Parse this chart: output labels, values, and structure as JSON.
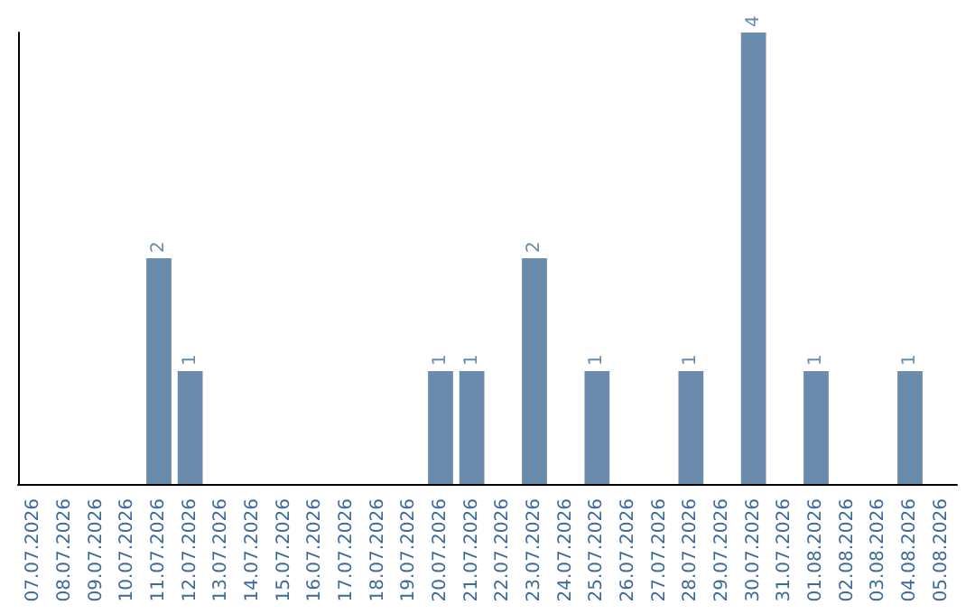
{
  "chart_data": {
    "type": "bar",
    "categories": [
      "07.07.2026",
      "08.07.2026",
      "09.07.2026",
      "10.07.2026",
      "11.07.2026",
      "12.07.2026",
      "13.07.2026",
      "14.07.2026",
      "15.07.2026",
      "16.07.2026",
      "17.07.2026",
      "18.07.2026",
      "19.07.2026",
      "20.07.2026",
      "21.07.2026",
      "22.07.2026",
      "23.07.2026",
      "24.07.2026",
      "25.07.2026",
      "26.07.2026",
      "27.07.2026",
      "28.07.2026",
      "29.07.2026",
      "30.07.2026",
      "31.07.2026",
      "01.08.2026",
      "02.08.2026",
      "03.08.2026",
      "04.08.2026",
      "05.08.2026"
    ],
    "values": [
      0,
      0,
      0,
      0,
      2,
      1,
      0,
      0,
      0,
      0,
      0,
      0,
      0,
      1,
      1,
      0,
      2,
      0,
      1,
      0,
      0,
      1,
      0,
      4,
      0,
      1,
      0,
      0,
      1,
      0
    ],
    "value_labels": [
      null,
      null,
      null,
      null,
      "2",
      "1",
      null,
      null,
      null,
      null,
      null,
      null,
      null,
      "1",
      "1",
      null,
      "2",
      null,
      "1",
      null,
      null,
      "1",
      null,
      "4",
      null,
      "1",
      null,
      null,
      "1",
      null
    ],
    "color": "#6a8bab",
    "tick_labels": "x",
    "grid": false
  }
}
